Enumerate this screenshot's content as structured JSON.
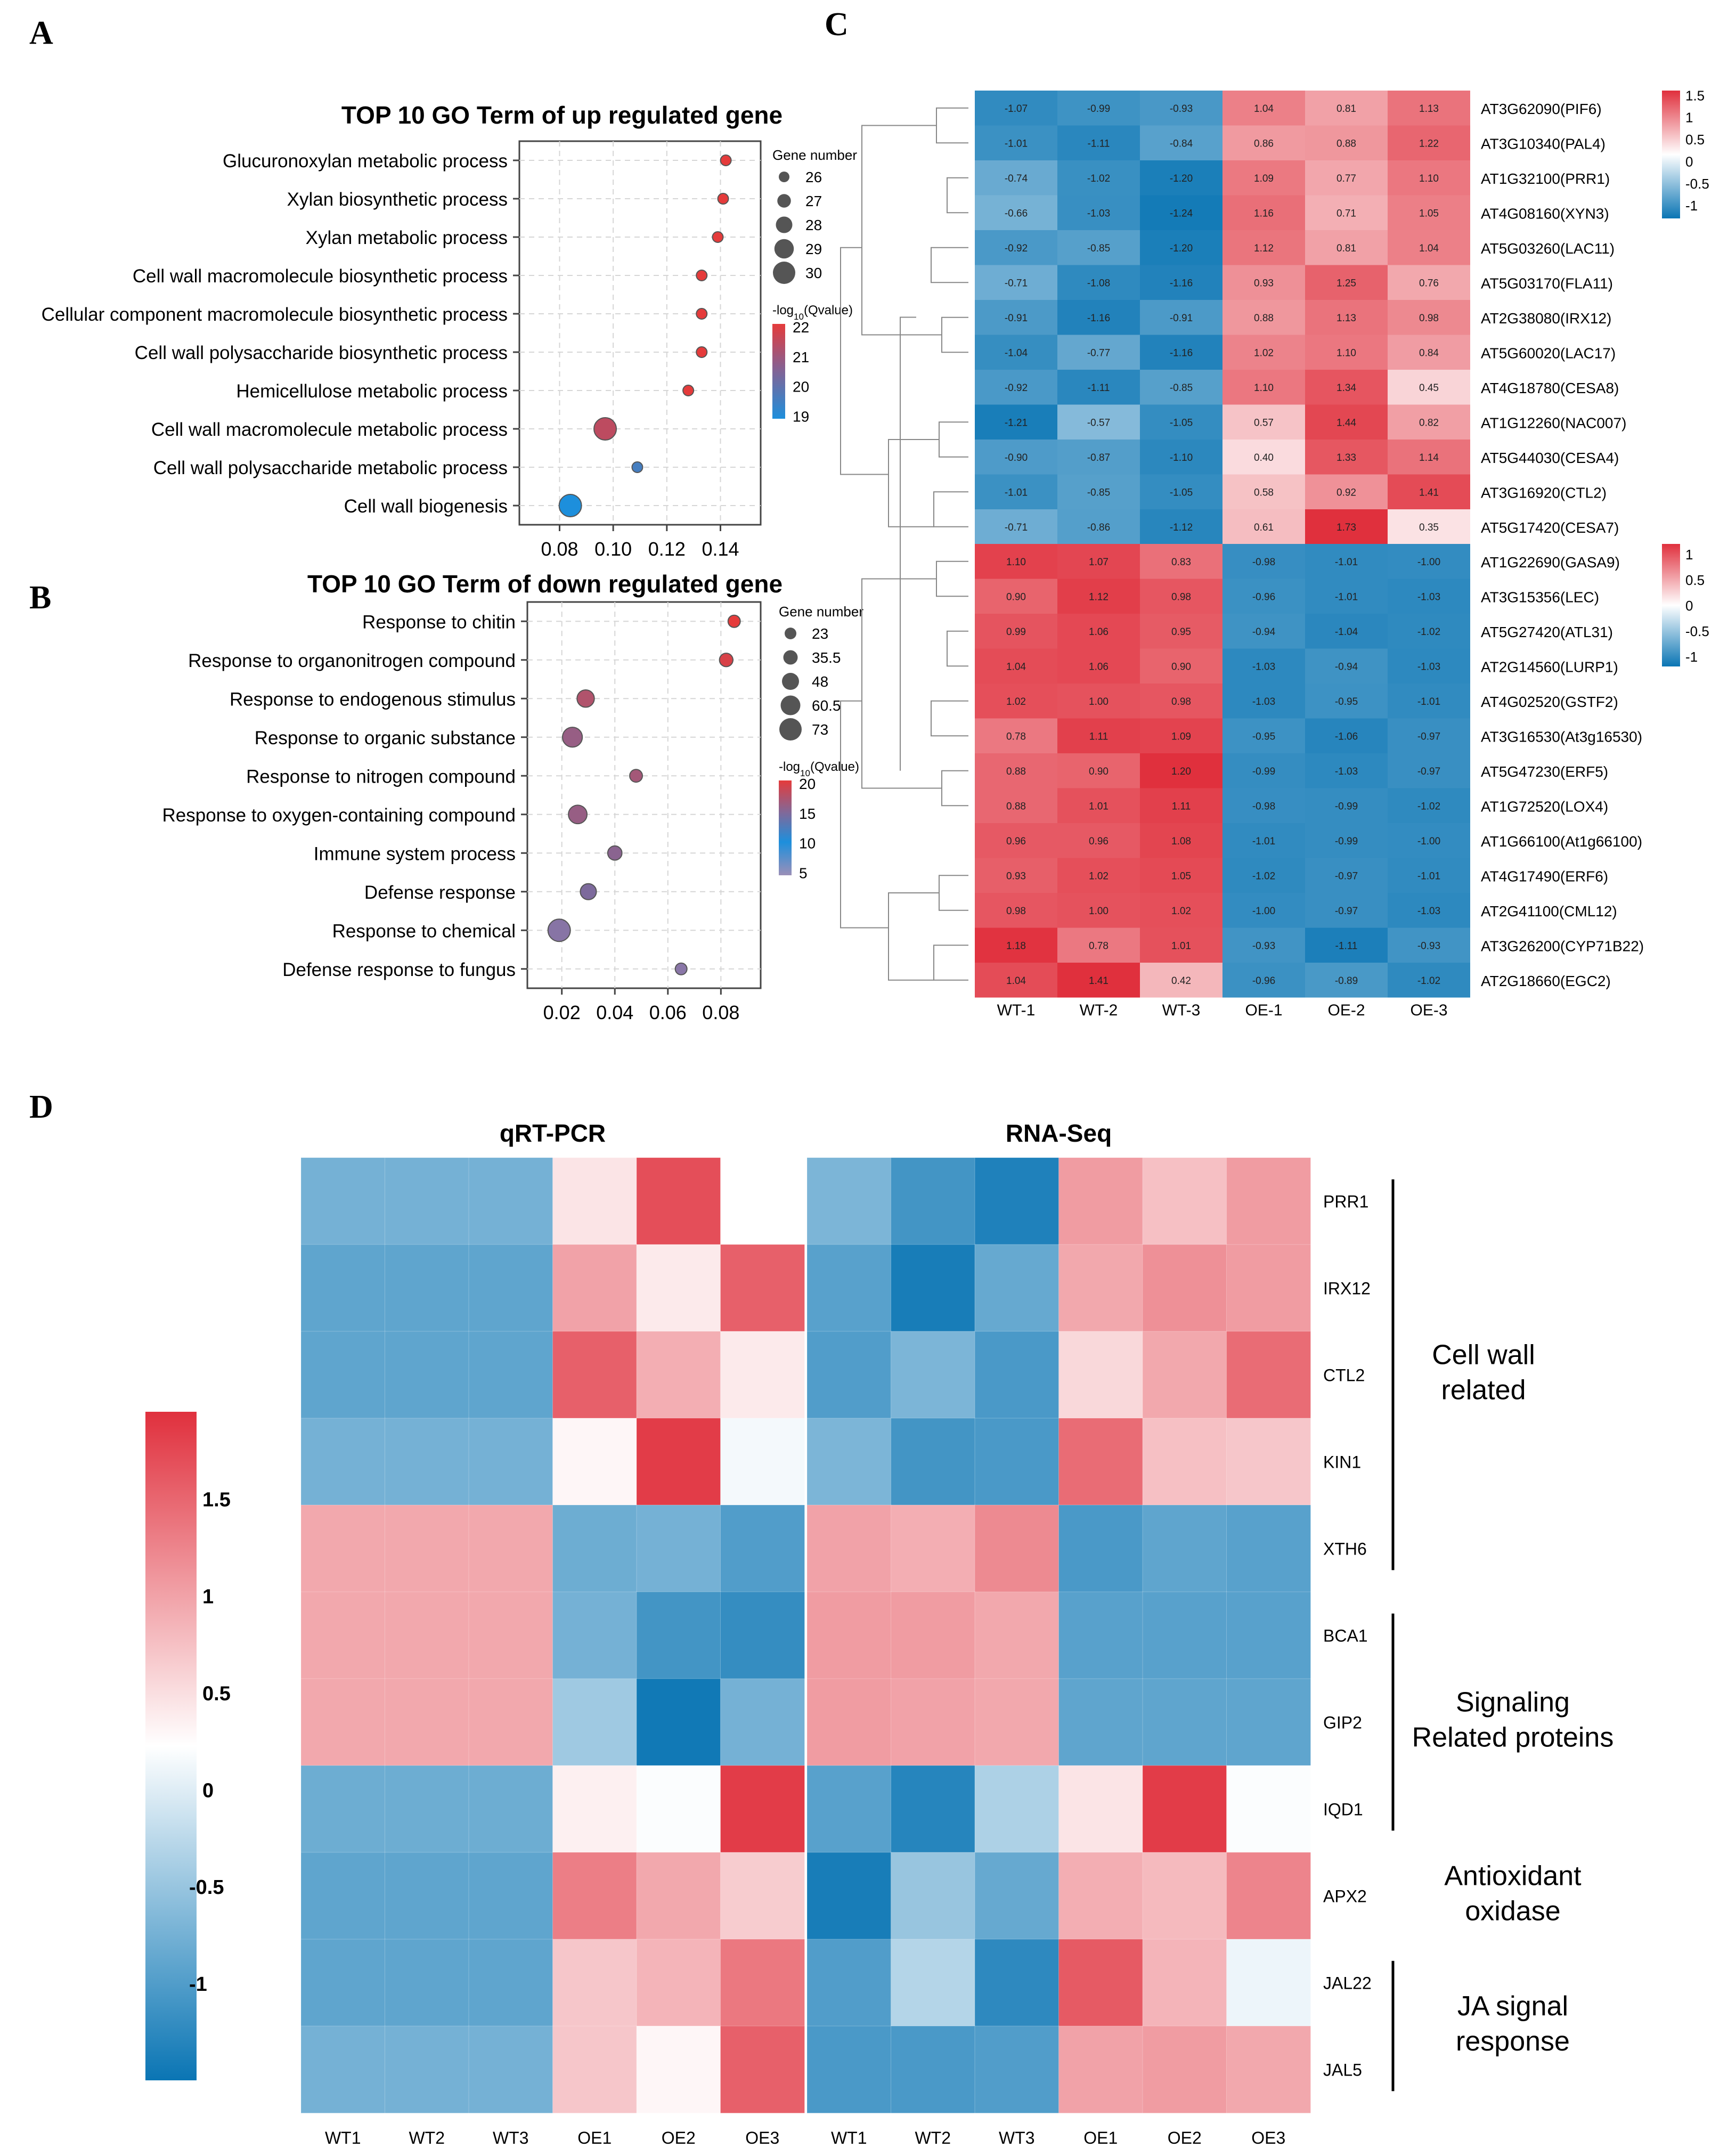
{
  "panel_labels": {
    "a": "A",
    "b": "B",
    "c": "C",
    "d": "D"
  },
  "chart_data": [
    {
      "type": "scatter",
      "panel": "A",
      "title": "TOP 10 GO Term of up regulated gene",
      "xlabel": "",
      "ylabel": "",
      "xlim": [
        0.065,
        0.155
      ],
      "xticks": [
        "0.08",
        "0.10",
        "0.12",
        "0.14"
      ],
      "xtick_values": [
        0.08,
        0.1,
        0.12,
        0.14
      ],
      "categories": [
        "Glucuronoxylan metabolic process",
        "Xylan biosynthetic process",
        "Xylan metabolic process",
        "Cell wall macromolecule biosynthetic process",
        "Cellular component macromolecule biosynthetic process",
        "Cell wall polysaccharide biosynthetic process",
        "Hemicellulose metabolic process",
        "Cell wall macromolecule metabolic process",
        "Cell wall polysaccharide metabolic process",
        "Cell wall biogenesis"
      ],
      "x": [
        0.142,
        0.141,
        0.139,
        0.133,
        0.133,
        0.133,
        0.128,
        0.097,
        0.109,
        0.084
      ],
      "size": [
        26,
        26,
        26,
        26,
        26,
        26,
        26,
        30,
        26,
        30
      ],
      "color_value": [
        21.5,
        21.5,
        21.5,
        21.5,
        21.5,
        21.5,
        21.5,
        21.0,
        19.5,
        19.0
      ],
      "legend_size_title": "Gene number",
      "legend_sizes": [
        "26",
        "27",
        "28",
        "29",
        "30"
      ],
      "legend_color_title_prefix": "-log",
      "legend_color_title_sub": "10",
      "legend_color_title_suffix": "(Qvalue)",
      "legend_color_ticks": [
        "22",
        "21",
        "20",
        "19"
      ]
    },
    {
      "type": "scatter",
      "panel": "B",
      "title": "TOP 10 GO Term of down regulated gene",
      "xlabel": "",
      "ylabel": "",
      "xlim": [
        0.007,
        0.095
      ],
      "xticks": [
        "0.02",
        "0.04",
        "0.06",
        "0.08"
      ],
      "xtick_values": [
        0.02,
        0.04,
        0.06,
        0.08
      ],
      "categories": [
        "Response to chitin",
        "Response to organonitrogen compound",
        "Response to endogenous stimulus",
        "Response to organic substance",
        "Response to nitrogen compound",
        "Response to oxygen-containing compound",
        "Immune system process",
        "Defense response",
        "Response to chemical",
        "Defense response to fungus"
      ],
      "x": [
        0.085,
        0.082,
        0.029,
        0.024,
        0.048,
        0.026,
        0.04,
        0.03,
        0.019,
        0.065
      ],
      "size": [
        30,
        35,
        50,
        60,
        32,
        55,
        38,
        45,
        70,
        28
      ],
      "color_value": [
        20,
        19.5,
        18,
        17,
        17.5,
        17,
        16.5,
        16,
        13,
        12
      ],
      "legend_size_title": "Gene number",
      "legend_sizes": [
        "23",
        "35.5",
        "48",
        "60.5",
        "73"
      ],
      "legend_color_title_prefix": "-log",
      "legend_color_title_sub": "10",
      "legend_color_title_suffix": "(Qvalue)",
      "legend_color_ticks": [
        "20",
        "15",
        "10",
        "5"
      ]
    },
    {
      "type": "heatmap",
      "panel": "C",
      "x": [
        "WT-1",
        "WT-2",
        "WT-3",
        "OE-1",
        "OE-2",
        "OE-3"
      ],
      "groups": [
        {
          "rows": [
            "AT3G62090(PIF6)",
            "AT3G10340(PAL4)",
            "AT1G32100(PRR1)",
            "AT4G08160(XYN3)",
            "AT5G03260(LAC11)",
            "AT5G03170(FLA11)",
            "AT2G38080(IRX12)",
            "AT5G60020(LAC17)",
            "AT4G18780(CESA8)",
            "AT1G12260(NAC007)",
            "AT5G44030(CESA4)",
            "AT3G16920(CTL2)",
            "AT5G17420(CESA7)"
          ],
          "values": [
            [
              "-1.07",
              "-0.99",
              "-0.93",
              "1.04",
              "0.81",
              "1.13"
            ],
            [
              "-1.01",
              "-1.11",
              "-0.84",
              "0.86",
              "0.88",
              "1.22"
            ],
            [
              "-0.74",
              "-1.02",
              "-1.20",
              "1.09",
              "0.77",
              "1.10"
            ],
            [
              "-0.66",
              "-1.03",
              "-1.24",
              "1.16",
              "0.71",
              "1.05"
            ],
            [
              "-0.92",
              "-0.85",
              "-1.20",
              "1.12",
              "0.81",
              "1.04"
            ],
            [
              "-0.71",
              "-1.08",
              "-1.16",
              "0.93",
              "1.25",
              "0.76"
            ],
            [
              "-0.91",
              "-1.16",
              "-0.91",
              "0.88",
              "1.13",
              "0.98"
            ],
            [
              "-1.04",
              "-0.77",
              "-1.16",
              "1.02",
              "1.10",
              "0.84"
            ],
            [
              "-0.92",
              "-1.11",
              "-0.85",
              "1.10",
              "1.34",
              "0.45"
            ],
            [
              "-1.21",
              "-0.57",
              "-1.05",
              "0.57",
              "1.44",
              "0.82"
            ],
            [
              "-0.90",
              "-0.87",
              "-1.10",
              "0.40",
              "1.33",
              "1.14"
            ],
            [
              "-1.01",
              "-0.85",
              "-1.05",
              "0.58",
              "0.92",
              "1.41"
            ],
            [
              "-0.71",
              "-0.86",
              "-1.12",
              "0.61",
              "1.73",
              "0.35"
            ]
          ],
          "legend_ticks": [
            "1.5",
            "1",
            "0.5",
            "0",
            "-0.5",
            "-1"
          ],
          "legend_tick_values": [
            1.5,
            1,
            0.5,
            0,
            -0.5,
            -1
          ],
          "range": [
            -1.3,
            1.6
          ]
        },
        {
          "rows": [
            "AT1G22690(GASA9)",
            "AT3G15356(LEC)",
            "AT5G27420(ATL31)",
            "AT2G14560(LURP1)",
            "AT4G02520(GSTF2)",
            "AT3G16530(At3g16530)",
            "AT5G47230(ERF5)",
            "AT1G72520(LOX4)",
            "AT1G66100(At1g66100)",
            "AT4G17490(ERF6)",
            "AT2G41100(CML12)",
            "AT3G26200(CYP71B22)",
            "AT2G18660(EGC2)"
          ],
          "values": [
            [
              "1.10",
              "1.07",
              "0.83",
              "-0.98",
              "-1.01",
              "-1.00"
            ],
            [
              "0.90",
              "1.12",
              "0.98",
              "-0.96",
              "-1.01",
              "-1.03"
            ],
            [
              "0.99",
              "1.06",
              "0.95",
              "-0.94",
              "-1.04",
              "-1.02"
            ],
            [
              "1.04",
              "1.06",
              "0.90",
              "-1.03",
              "-0.94",
              "-1.03"
            ],
            [
              "1.02",
              "1.00",
              "0.98",
              "-1.03",
              "-0.95",
              "-1.01"
            ],
            [
              "0.78",
              "1.11",
              "1.09",
              "-0.95",
              "-1.06",
              "-0.97"
            ],
            [
              "0.88",
              "0.90",
              "1.20",
              "-0.99",
              "-1.03",
              "-0.97"
            ],
            [
              "0.88",
              "1.01",
              "1.11",
              "-0.98",
              "-0.99",
              "-1.02"
            ],
            [
              "0.96",
              "0.96",
              "1.08",
              "-1.01",
              "-0.99",
              "-1.00"
            ],
            [
              "0.93",
              "1.02",
              "1.05",
              "-1.02",
              "-0.97",
              "-1.01"
            ],
            [
              "0.98",
              "1.00",
              "1.02",
              "-1.00",
              "-0.97",
              "-1.03"
            ],
            [
              "1.18",
              "0.78",
              "1.01",
              "-0.93",
              "-1.11",
              "-0.93"
            ],
            [
              "1.04",
              "1.41",
              "0.42",
              "-0.96",
              "-0.89",
              "-1.02"
            ]
          ],
          "legend_ticks": [
            "1",
            "0.5",
            "0",
            "-0.5",
            "-1"
          ],
          "legend_tick_values": [
            1,
            0.5,
            0,
            -0.5,
            -1
          ],
          "range": [
            -1.2,
            1.2
          ]
        }
      ]
    },
    {
      "type": "heatmap",
      "panel": "D",
      "range": [
        -1.5,
        1.95
      ],
      "legend_ticks": [
        "1.5",
        "1",
        "0.5",
        "0",
        "-0.5",
        "-1"
      ],
      "legend_tick_values": [
        1.5,
        1,
        0.5,
        0,
        -0.5,
        -1
      ],
      "rows": [
        "PRR1",
        "IRX12",
        "CTL2",
        "KIN1",
        "XTH6",
        "BCA1",
        "GIP2",
        "IQD1",
        "APX2",
        "JAL22",
        "JAL5"
      ],
      "blocks": [
        {
          "title": "qRT-PCR",
          "x": [
            "WT1",
            "WT2",
            "WT3",
            "OE1",
            "OE2",
            "OE3"
          ],
          "values": [
            [
              -0.75,
              -0.75,
              -0.75,
              0.45,
              1.7,
              null
            ],
            [
              -0.9,
              -0.9,
              -0.9,
              1.0,
              0.4,
              1.55
            ],
            [
              -0.9,
              -0.9,
              -0.9,
              1.55,
              0.9,
              0.4
            ],
            [
              -0.75,
              -0.75,
              -0.75,
              0.3,
              1.85,
              0.15
            ],
            [
              0.95,
              0.95,
              0.95,
              -0.8,
              -0.75,
              -1.0
            ],
            [
              0.95,
              0.95,
              0.95,
              -0.75,
              -1.1,
              -1.2
            ],
            [
              0.95,
              0.95,
              0.95,
              -0.45,
              -1.45,
              -0.75
            ],
            [
              -0.8,
              -0.8,
              -0.8,
              0.35,
              0.2,
              1.85
            ],
            [
              -0.9,
              -0.9,
              -0.9,
              1.3,
              0.95,
              0.65
            ],
            [
              -0.9,
              -0.9,
              -0.9,
              0.7,
              0.85,
              1.35
            ],
            [
              -0.75,
              -0.75,
              -0.75,
              0.7,
              0.3,
              1.55
            ]
          ]
        },
        {
          "title": "RNA-Seq",
          "x": [
            "WT1",
            "WT2",
            "WT3",
            "OE1",
            "OE2",
            "OE3"
          ],
          "values": [
            [
              -0.7,
              -1.1,
              -1.35,
              1.05,
              0.75,
              1.05
            ],
            [
              -0.95,
              -1.4,
              -0.85,
              0.95,
              1.15,
              1.05
            ],
            [
              -1.0,
              -0.7,
              -1.05,
              0.55,
              0.95,
              1.45
            ],
            [
              -0.7,
              -1.1,
              -1.05,
              1.45,
              0.75,
              0.7
            ],
            [
              1.0,
              0.9,
              1.2,
              -1.05,
              -0.9,
              -0.95
            ],
            [
              1.05,
              1.05,
              0.95,
              -0.95,
              -0.95,
              -0.95
            ],
            [
              1.05,
              1.0,
              0.95,
              -0.9,
              -0.9,
              -0.9
            ],
            [
              -0.95,
              -1.3,
              -0.35,
              0.45,
              1.85,
              0.2
            ],
            [
              -1.4,
              -0.5,
              -0.85,
              0.9,
              0.8,
              1.25
            ],
            [
              -1.0,
              -0.3,
              -1.25,
              1.6,
              0.85,
              0.1
            ],
            [
              -1.05,
              -1.05,
              -1.0,
              1.0,
              1.05,
              0.95
            ]
          ]
        }
      ],
      "groups": [
        {
          "label_lines": [
            "Cell wall",
            "related"
          ],
          "rows": [
            0,
            4
          ]
        },
        {
          "label_lines": [
            "Signaling",
            "Related proteins"
          ],
          "rows": [
            5,
            7
          ]
        },
        {
          "label_lines": [
            "Antioxidant",
            "oxidase"
          ],
          "rows": [
            8,
            8
          ]
        },
        {
          "label_lines": [
            "JA signal",
            "response"
          ],
          "rows": [
            9,
            10
          ]
        }
      ]
    }
  ]
}
